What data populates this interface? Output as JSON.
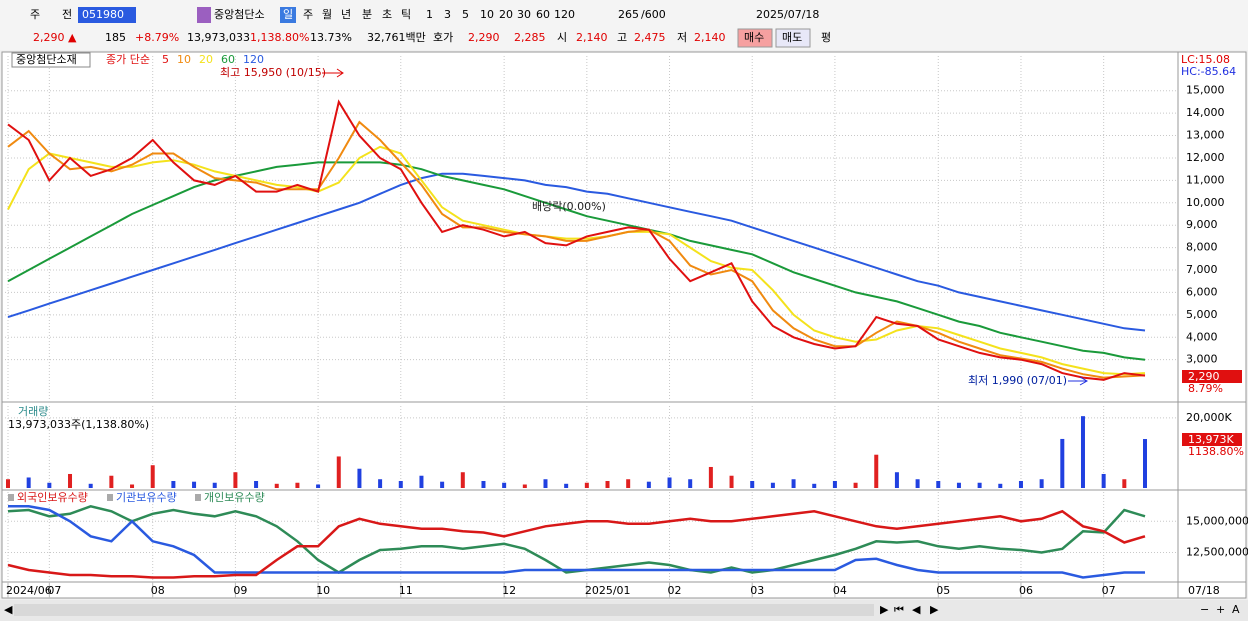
{
  "toolbar": {
    "items": [
      "주",
      "전",
      "051980",
      "중앙첨단소",
      "일",
      "주",
      "월",
      "년",
      "분",
      "초",
      "틱",
      "1",
      "3",
      "5",
      "10",
      "20",
      "30",
      "60",
      "120",
      "265",
      "/600",
      "2025/07/18"
    ]
  },
  "quote": {
    "items": [
      "2,290 ▲",
      "185",
      "+8.79%",
      "13,973,033",
      "1,138.80%",
      "13.73%",
      "32,761백만",
      "호가",
      "2,290",
      "2,285",
      "시",
      "2,140",
      "고",
      "2,475",
      "저",
      "2,140",
      "매수",
      "매도",
      "평"
    ]
  },
  "chart_data": [
    {
      "type": "line",
      "title": "중앙첨단소재",
      "subtitle": "종가 단순",
      "categories": [
        "2024/06",
        null,
        "07",
        null,
        null,
        null,
        null,
        "08",
        null,
        null,
        null,
        "09",
        null,
        null,
        null,
        "10",
        null,
        null,
        null,
        "11",
        null,
        null,
        null,
        null,
        "12",
        null,
        null,
        null,
        "2025/01",
        null,
        null,
        null,
        "02",
        null,
        null,
        null,
        "03",
        null,
        null,
        null,
        "04",
        null,
        null,
        null,
        null,
        "05",
        null,
        null,
        null,
        "06",
        null,
        null,
        null,
        "07",
        null,
        null
      ],
      "end_label": "07/18",
      "series": [
        {
          "name": "5",
          "color": "#e01010",
          "values": [
            13500,
            12800,
            11000,
            12000,
            11200,
            11500,
            12000,
            12800,
            11800,
            11000,
            10800,
            11200,
            10500,
            10500,
            10800,
            10500,
            14500,
            13000,
            12000,
            11500,
            10000,
            8700,
            9000,
            8800,
            8500,
            8700,
            8200,
            8100,
            8500,
            8700,
            8900,
            8800,
            7500,
            6500,
            6900,
            7300,
            5600,
            4500,
            4000,
            3700,
            3500,
            3600,
            4900,
            4600,
            4500,
            3900,
            3600,
            3300,
            3100,
            3000,
            2800,
            2400,
            2200,
            2100,
            2400,
            2290
          ]
        },
        {
          "name": "10",
          "color": "#f08a10",
          "values": [
            12500,
            13200,
            12200,
            11500,
            11600,
            11400,
            11700,
            12200,
            12200,
            11600,
            11100,
            11000,
            10900,
            10600,
            10600,
            10600,
            12000,
            13600,
            12800,
            11800,
            10800,
            9500,
            8900,
            8900,
            8700,
            8600,
            8500,
            8300,
            8300,
            8500,
            8700,
            8800,
            8300,
            7200,
            6800,
            7000,
            6500,
            5200,
            4400,
            3900,
            3600,
            3600,
            4200,
            4700,
            4500,
            4200,
            3800,
            3500,
            3200,
            3050,
            2900,
            2600,
            2350,
            2200,
            2250,
            2300
          ]
        },
        {
          "name": "20",
          "color": "#f4e21c",
          "values": [
            9700,
            11500,
            12200,
            12000,
            11800,
            11600,
            11600,
            11800,
            11900,
            11700,
            11400,
            11200,
            11000,
            10800,
            10700,
            10500,
            10900,
            12000,
            12500,
            12200,
            11000,
            9800,
            9200,
            9000,
            8800,
            8600,
            8500,
            8400,
            8400,
            8500,
            8700,
            8700,
            8600,
            8000,
            7400,
            7100,
            7000,
            6100,
            5000,
            4300,
            4000,
            3800,
            3900,
            4300,
            4500,
            4400,
            4100,
            3800,
            3500,
            3300,
            3100,
            2800,
            2600,
            2400,
            2350,
            2400
          ]
        },
        {
          "name": "60",
          "color": "#1a9a3a",
          "values": [
            6500,
            7000,
            7500,
            8000,
            8500,
            9000,
            9500,
            9900,
            10300,
            10700,
            11000,
            11200,
            11400,
            11600,
            11700,
            11800,
            11800,
            11800,
            11800,
            11700,
            11500,
            11200,
            11000,
            10800,
            10600,
            10300,
            10000,
            9700,
            9400,
            9200,
            9000,
            8800,
            8600,
            8300,
            8100,
            7900,
            7700,
            7300,
            6900,
            6600,
            6300,
            6000,
            5800,
            5600,
            5300,
            5000,
            4700,
            4500,
            4200,
            4000,
            3800,
            3600,
            3400,
            3300,
            3100,
            3000
          ]
        },
        {
          "name": "120",
          "color": "#2a5ae0",
          "values": [
            4900,
            5200,
            5500,
            5800,
            6100,
            6400,
            6700,
            7000,
            7300,
            7600,
            7900,
            8200,
            8500,
            8800,
            9100,
            9400,
            9700,
            10000,
            10400,
            10800,
            11100,
            11300,
            11300,
            11200,
            11100,
            11000,
            10800,
            10700,
            10500,
            10400,
            10200,
            10000,
            9800,
            9600,
            9400,
            9200,
            8900,
            8600,
            8300,
            8000,
            7700,
            7400,
            7100,
            6800,
            6500,
            6300,
            6000,
            5800,
            5600,
            5400,
            5200,
            5000,
            4800,
            4600,
            4400,
            4300
          ]
        }
      ],
      "ylim": [
        1200,
        16550
      ],
      "yticks": [
        {
          "value": 3000,
          "label": "3,000"
        },
        {
          "value": 4000,
          "label": "4,000"
        },
        {
          "value": 5000,
          "label": "5,000"
        },
        {
          "value": 6000,
          "label": "6,000"
        },
        {
          "value": 7000,
          "label": "7,000"
        },
        {
          "value": 8000,
          "label": "8,000"
        },
        {
          "value": 9000,
          "label": "9,000"
        },
        {
          "value": 10000,
          "label": "10,000"
        },
        {
          "value": 11000,
          "label": "11,000"
        },
        {
          "value": 12000,
          "label": "12,000"
        },
        {
          "value": 13000,
          "label": "13,000"
        },
        {
          "value": 14000,
          "label": "14,000"
        },
        {
          "value": 15000,
          "label": "15,000"
        }
      ],
      "grid": true,
      "annotations": {
        "high": "최고 15,950 (10/15)",
        "dividend": "배당락(0.00%)",
        "low": "최저 1,990 (07/01)",
        "lc": "LC:15.08",
        "hc": "HC:-85.64",
        "last_price": "2,290",
        "last_change": "8.79%"
      }
    },
    {
      "type": "bar",
      "title": "거래량",
      "subtitle": "13,973,033주(1,138.80%)",
      "values": [
        2500,
        3000,
        1500,
        4000,
        1200,
        3500,
        1000,
        6500,
        2000,
        1800,
        1500,
        4500,
        2000,
        1200,
        1500,
        1000,
        9000,
        5500,
        2500,
        2000,
        3500,
        1800,
        4500,
        2000,
        1500,
        1000,
        2500,
        1200,
        1500,
        2000,
        2500,
        1800,
        3000,
        2500,
        6000,
        3500,
        2000,
        1500,
        2500,
        1200,
        2000,
        1500,
        9500,
        4500,
        2500,
        2000,
        1500,
        1500,
        1200,
        2000,
        2500,
        14000,
        20500,
        4000,
        2500,
        13973
      ],
      "color_up": "#e02020",
      "color_down": "#2040e0",
      "ylim": [
        0,
        23400
      ],
      "yticks": [
        {
          "value": 20000,
          "label": "20,000K"
        }
      ],
      "grid": true,
      "last_label": "13,973K",
      "last_ratio": "1138.80%"
    },
    {
      "type": "line",
      "series": [
        {
          "name": "외국인보유수량",
          "color": "#d81818",
          "values": [
            11500000,
            11100000,
            10900000,
            10700000,
            10700000,
            10600000,
            10600000,
            10500000,
            10500000,
            10600000,
            10600000,
            10700000,
            10700000,
            11900000,
            13000000,
            13000000,
            14600000,
            15200000,
            14800000,
            14600000,
            14400000,
            14400000,
            14200000,
            14100000,
            13800000,
            14200000,
            14600000,
            14800000,
            15000000,
            15000000,
            14800000,
            14800000,
            15000000,
            15200000,
            15000000,
            15000000,
            15200000,
            15400000,
            15600000,
            15800000,
            15400000,
            15000000,
            14600000,
            14400000,
            14600000,
            14800000,
            15000000,
            15200000,
            15400000,
            15000000,
            15200000,
            15800000,
            14600000,
            14200000,
            13300000,
            13800000
          ]
        },
        {
          "name": "기관보유수량",
          "color": "#2a5ae0",
          "values": [
            16200000,
            16200000,
            15900000,
            15000000,
            13800000,
            13400000,
            15000000,
            13400000,
            13000000,
            12300000,
            10900000,
            10900000,
            10900000,
            10900000,
            10900000,
            10900000,
            10900000,
            10900000,
            10900000,
            10900000,
            10900000,
            10900000,
            10900000,
            10900000,
            10900000,
            11100000,
            11100000,
            11100000,
            11100000,
            11100000,
            11100000,
            11100000,
            11100000,
            11100000,
            11100000,
            11100000,
            11100000,
            11100000,
            11100000,
            11100000,
            11100000,
            11900000,
            12000000,
            11500000,
            11100000,
            10900000,
            10900000,
            10900000,
            10900000,
            10900000,
            10900000,
            10900000,
            10500000,
            10700000,
            10900000,
            10900000
          ]
        },
        {
          "name": "개인보유수량",
          "color": "#2e8b57",
          "values": [
            15800000,
            15900000,
            15400000,
            15600000,
            16200000,
            15800000,
            15000000,
            15600000,
            15900000,
            15600000,
            15400000,
            15800000,
            15400000,
            14600000,
            13400000,
            11900000,
            10900000,
            11900000,
            12700000,
            12800000,
            13000000,
            13000000,
            12800000,
            13000000,
            13200000,
            12800000,
            11900000,
            10900000,
            11100000,
            11300000,
            11500000,
            11700000,
            11500000,
            11100000,
            10900000,
            11300000,
            10900000,
            11100000,
            11500000,
            11900000,
            12300000,
            12800000,
            13400000,
            13300000,
            13400000,
            13000000,
            12800000,
            13000000,
            12800000,
            12700000,
            12500000,
            12800000,
            14200000,
            14100000,
            15900000,
            15400000
          ]
        }
      ],
      "ylim": [
        10300000,
        17340000
      ],
      "yticks": [
        {
          "value": 12500000,
          "label": "12,500,000"
        },
        {
          "value": 15000000,
          "label": "15,000,000"
        }
      ],
      "grid": true
    }
  ]
}
